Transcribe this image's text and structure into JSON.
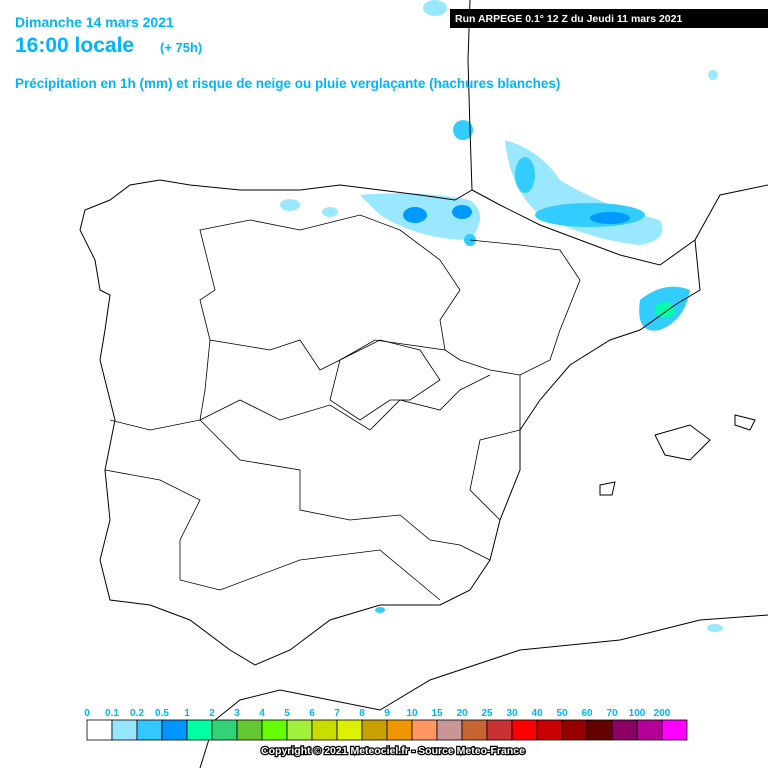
{
  "header": {
    "date": "Dimanche 14 mars 2021",
    "time": "16:00 locale",
    "lead": "(+ 75h)",
    "subtitle": "Précipitation en 1h (mm) et risque de neige ou pluie verglaçante (hachures blanches)"
  },
  "run": "Run ARPEGE 0.1° 12 Z du Jeudi 11 mars 2021",
  "legend": {
    "labels": [
      "0",
      "0.1",
      "0.2",
      "0.5",
      "1",
      "2",
      "3",
      "4",
      "5",
      "6",
      "7",
      "8",
      "9",
      "10",
      "15",
      "20",
      "25",
      "30",
      "40",
      "50",
      "60",
      "70",
      "100",
      "200"
    ],
    "colors": [
      "#ffffff",
      "#96e6ff",
      "#32c8ff",
      "#0096ff",
      "#00ffa0",
      "#32d278",
      "#64c832",
      "#64ff00",
      "#a0f03c",
      "#c8dc00",
      "#dcf000",
      "#c8a000",
      "#f09600",
      "#ff9664",
      "#c89696",
      "#c86432",
      "#c83232",
      "#ff0000",
      "#c80000",
      "#960000",
      "#640000",
      "#8c0064",
      "#b40096",
      "#ff00ff"
    ]
  },
  "copyright": "Copyright © 2021 Meteociel.fr - Source Meteo-France"
}
